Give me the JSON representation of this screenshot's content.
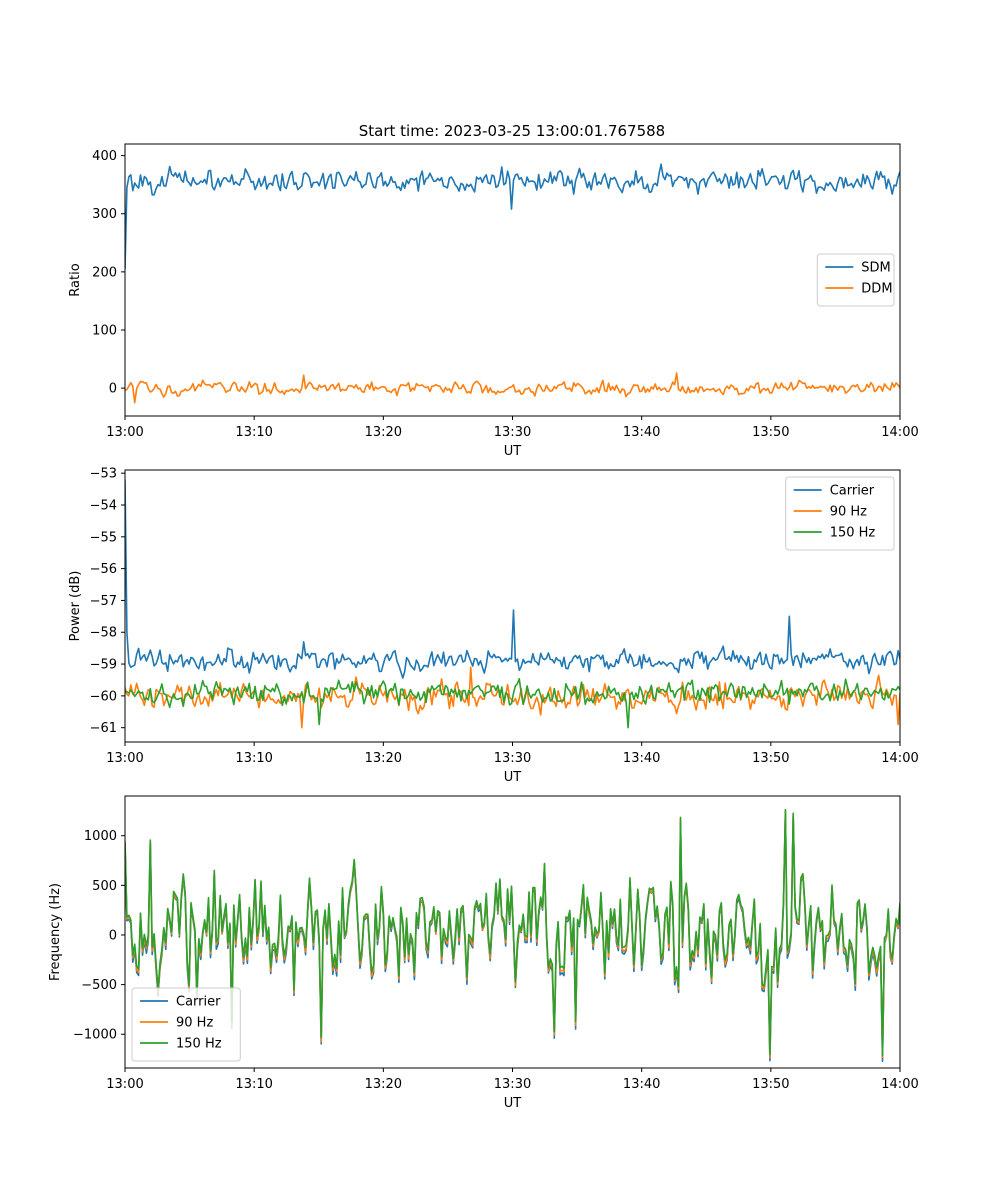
{
  "figure": {
    "title": "Start time: 2023-03-25 13:00:01.767588"
  },
  "chart_data": [
    {
      "type": "line",
      "title": "Start time: 2023-03-25 13:00:01.767588",
      "xlabel": "UT",
      "ylabel": "Ratio",
      "xlim": [
        "13:00",
        "14:00"
      ],
      "ylim": [
        -48,
        420
      ],
      "xticks": [
        "13:00",
        "13:10",
        "13:20",
        "13:30",
        "13:40",
        "13:50",
        "14:00"
      ],
      "yticks": [
        0,
        100,
        200,
        300,
        400
      ],
      "grid": false,
      "legend_loc": "center-right",
      "series": [
        {
          "name": "SDM",
          "color": "#1f77b4",
          "mean": 357,
          "noise": 16,
          "events": [
            [
              0,
              205
            ],
            [
              0.1,
              345
            ],
            [
              29.9,
              308
            ]
          ]
        },
        {
          "name": "DDM",
          "color": "#ff7f0e",
          "mean": 0,
          "noise": 9,
          "events": [
            [
              0.8,
              -25
            ],
            [
              13.8,
              22
            ],
            [
              42.7,
              26
            ]
          ]
        }
      ]
    },
    {
      "type": "line",
      "xlabel": "UT",
      "ylabel": "Power (dB)",
      "xlim": [
        "13:00",
        "14:00"
      ],
      "ylim": [
        -61.45,
        -52.9
      ],
      "xticks": [
        "13:00",
        "13:10",
        "13:20",
        "13:30",
        "13:40",
        "13:50",
        "14:00"
      ],
      "yticks": [
        -53,
        -54,
        -55,
        -56,
        -57,
        -58,
        -59,
        -60,
        -61
      ],
      "grid": false,
      "legend_loc": "top-right",
      "series": [
        {
          "name": "Carrier",
          "color": "#1f77b4",
          "mean": -58.9,
          "noise": 0.3,
          "events": [
            [
              0,
              -53.2
            ],
            [
              0.15,
              -58.0
            ],
            [
              30,
              -57.3
            ],
            [
              51.4,
              -57.5
            ],
            [
              13.9,
              -58.3
            ]
          ]
        },
        {
          "name": "90 Hz",
          "color": "#ff7f0e",
          "mean": -60.0,
          "noise": 0.35,
          "events": [
            [
              13.7,
              -61.0
            ],
            [
              26.8,
              -59.1
            ],
            [
              59.9,
              -60.9
            ]
          ]
        },
        {
          "name": "150 Hz",
          "color": "#2ca02c",
          "mean": -59.9,
          "noise": 0.3,
          "events": [
            [
              15.1,
              -60.9
            ],
            [
              38.9,
              -61.0
            ]
          ]
        }
      ]
    },
    {
      "type": "line",
      "xlabel": "UT",
      "ylabel": "Frequency (Hz)",
      "xlim": [
        "13:00",
        "14:00"
      ],
      "ylim": [
        -1340,
        1400
      ],
      "xticks": [
        "13:00",
        "13:10",
        "13:20",
        "13:30",
        "13:40",
        "13:50",
        "14:00"
      ],
      "yticks": [
        1000,
        500,
        0,
        -500,
        -1000
      ],
      "grid": false,
      "legend_loc": "lower-left",
      "series": [
        {
          "name": "Carrier",
          "color": "#1f77b4",
          "offset": -50
        },
        {
          "name": "90 Hz",
          "color": "#ff7f0e",
          "offset": -25
        },
        {
          "name": "150 Hz",
          "color": "#2ca02c",
          "offset": 0
        }
      ],
      "base": {
        "mean": 50,
        "noise": 420,
        "events": [
          [
            0,
            950
          ],
          [
            15.2,
            -1040
          ],
          [
            43.0,
            1180
          ],
          [
            51.2,
            1270
          ],
          [
            51.7,
            1220
          ],
          [
            58.6,
            1050
          ],
          [
            49.9,
            -1200
          ],
          [
            58.7,
            -1210
          ],
          [
            33.3,
            -980
          ],
          [
            34.9,
            -880
          ],
          [
            8.3,
            -880
          ],
          [
            2.0,
            960
          ]
        ]
      }
    }
  ]
}
